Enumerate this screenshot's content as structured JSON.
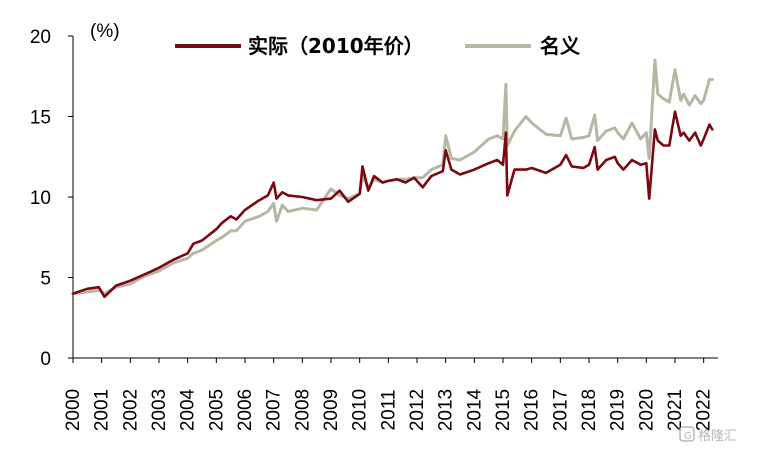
{
  "chart_data": {
    "type": "line",
    "ylabel": "(%)",
    "ylim": [
      0,
      20
    ],
    "yticks": [
      0,
      5,
      10,
      15,
      20
    ],
    "xlim": [
      2000.0,
      2022.5
    ],
    "xticks": [
      "2000",
      "2001",
      "2002",
      "2003",
      "2004",
      "2005",
      "2006",
      "2007",
      "2008",
      "2009",
      "2010",
      "2011",
      "2012",
      "2013",
      "2014",
      "2015",
      "2016",
      "2017",
      "2018",
      "2019",
      "2020",
      "2021",
      "2022"
    ],
    "legend_position": "top",
    "grid": false,
    "series": [
      {
        "name": "实际（2010年价）",
        "color": "#7a0a12",
        "x": [
          2000.0,
          2000.5,
          2000.9,
          2001.1,
          2001.5,
          2002.0,
          2002.5,
          2003.0,
          2003.5,
          2004.0,
          2004.2,
          2004.5,
          2005.0,
          2005.2,
          2005.5,
          2005.7,
          2006.0,
          2006.5,
          2006.8,
          2007.0,
          2007.1,
          2007.3,
          2007.5,
          2008.0,
          2008.5,
          2009.0,
          2009.3,
          2009.6,
          2010.0,
          2010.1,
          2010.3,
          2010.5,
          2010.8,
          2011.0,
          2011.3,
          2011.6,
          2011.9,
          2012.2,
          2012.5,
          2012.9,
          2013.0,
          2013.2,
          2013.5,
          2014.0,
          2014.5,
          2014.8,
          2015.0,
          2015.1,
          2015.15,
          2015.4,
          2015.8,
          2016.0,
          2016.5,
          2017.0,
          2017.2,
          2017.4,
          2017.8,
          2018.0,
          2018.2,
          2018.3,
          2018.6,
          2018.9,
          2019.0,
          2019.2,
          2019.5,
          2019.8,
          2020.0,
          2020.1,
          2020.3,
          2020.4,
          2020.6,
          2020.8,
          2021.0,
          2021.2,
          2021.3,
          2021.5,
          2021.7,
          2021.9,
          2022.0,
          2022.2,
          2022.3
        ],
        "values": [
          4.0,
          4.3,
          4.4,
          3.8,
          4.5,
          4.8,
          5.2,
          5.6,
          6.1,
          6.5,
          7.1,
          7.3,
          8.0,
          8.4,
          8.8,
          8.6,
          9.2,
          9.8,
          10.1,
          10.9,
          9.9,
          10.3,
          10.1,
          10.0,
          9.8,
          9.9,
          10.4,
          9.7,
          10.2,
          11.9,
          10.4,
          11.3,
          10.9,
          11.0,
          11.1,
          10.9,
          11.2,
          10.6,
          11.3,
          11.6,
          12.9,
          11.7,
          11.4,
          11.7,
          12.1,
          12.3,
          12.0,
          14.0,
          10.1,
          11.7,
          11.7,
          11.8,
          11.5,
          12.0,
          12.6,
          11.9,
          11.8,
          12.0,
          13.1,
          11.7,
          12.3,
          12.5,
          12.1,
          11.7,
          12.3,
          12.0,
          12.1,
          9.9,
          14.2,
          13.5,
          13.2,
          13.2,
          15.3,
          13.8,
          14.0,
          13.5,
          14.0,
          13.2,
          13.6,
          14.5,
          14.2
        ]
      },
      {
        "name": "名义",
        "color": "#b7b7a6",
        "x": [
          2000.0,
          2000.5,
          2000.9,
          2001.1,
          2001.5,
          2002.0,
          2002.5,
          2003.0,
          2003.5,
          2004.0,
          2004.2,
          2004.5,
          2005.0,
          2005.2,
          2005.5,
          2005.7,
          2006.0,
          2006.5,
          2006.8,
          2007.0,
          2007.1,
          2007.3,
          2007.5,
          2008.0,
          2008.5,
          2009.0,
          2009.3,
          2009.6,
          2010.0,
          2010.1,
          2010.3,
          2010.5,
          2010.8,
          2011.0,
          2011.3,
          2011.6,
          2011.9,
          2012.2,
          2012.5,
          2012.9,
          2013.0,
          2013.2,
          2013.5,
          2014.0,
          2014.5,
          2014.8,
          2015.0,
          2015.1,
          2015.15,
          2015.4,
          2015.8,
          2016.0,
          2016.5,
          2017.0,
          2017.2,
          2017.4,
          2017.8,
          2018.0,
          2018.2,
          2018.3,
          2018.6,
          2018.9,
          2019.0,
          2019.2,
          2019.5,
          2019.8,
          2020.0,
          2020.1,
          2020.3,
          2020.4,
          2020.6,
          2020.8,
          2021.0,
          2021.2,
          2021.3,
          2021.5,
          2021.7,
          2021.9,
          2022.0,
          2022.2,
          2022.3
        ],
        "values": [
          4.0,
          4.1,
          4.2,
          4.0,
          4.4,
          4.6,
          5.1,
          5.4,
          5.9,
          6.2,
          6.5,
          6.7,
          7.3,
          7.5,
          7.9,
          7.9,
          8.5,
          8.8,
          9.1,
          9.6,
          8.5,
          9.5,
          9.1,
          9.3,
          9.2,
          10.5,
          10.1,
          9.9,
          10.2,
          11.4,
          10.5,
          11.1,
          10.9,
          11.0,
          11.1,
          11.1,
          11.2,
          11.2,
          11.7,
          12.0,
          13.8,
          12.4,
          12.3,
          12.8,
          13.6,
          13.8,
          13.6,
          17.0,
          13.2,
          14.1,
          15.0,
          14.6,
          13.9,
          13.8,
          14.9,
          13.6,
          13.7,
          13.8,
          15.1,
          13.5,
          14.1,
          14.3,
          14.0,
          13.6,
          14.6,
          13.6,
          14.0,
          12.4,
          18.5,
          16.4,
          16.1,
          15.9,
          17.9,
          16.0,
          16.4,
          15.7,
          16.3,
          15.8,
          16.0,
          17.3,
          17.3
        ]
      }
    ]
  },
  "watermark": "格隆汇"
}
